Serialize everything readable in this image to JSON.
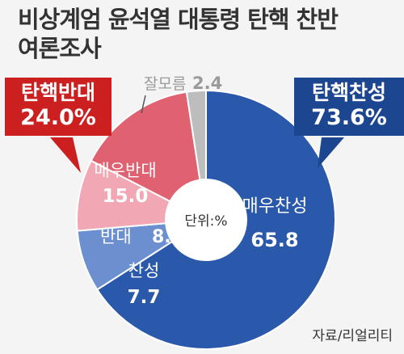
{
  "title_lines": [
    "비상계엄 윤석열 대통령 탄핵 찬반",
    "여론조사"
  ],
  "center_label": "단위:%",
  "source": "자료/리얼리티",
  "callouts": {
    "oppose": {
      "label": "탄핵반대",
      "value": "24.0%",
      "color": "#cc1f1f"
    },
    "support": {
      "label": "탄핵찬성",
      "value": "73.6%",
      "color": "#1d4690"
    }
  },
  "chart_data": {
    "type": "pie",
    "donut": true,
    "unit": "%",
    "title": "비상계엄 윤석열 대통령 탄핵 찬반 여론조사",
    "slices": [
      {
        "label": "매우찬성",
        "value": 65.8,
        "color": "#2a58ab"
      },
      {
        "label": "찬성",
        "value": 7.7,
        "color": "#6b8fcf"
      },
      {
        "label": "반대",
        "value": 8.9,
        "color": "#f1a7b4"
      },
      {
        "label": "매우반대",
        "value": 15.0,
        "color": "#e06170"
      },
      {
        "label": "잘모름",
        "value": 2.4,
        "color": "#bdbdbd"
      }
    ],
    "groups": [
      {
        "label": "탄핵찬성",
        "value": 73.6
      },
      {
        "label": "탄핵반대",
        "value": 24.0
      }
    ]
  }
}
